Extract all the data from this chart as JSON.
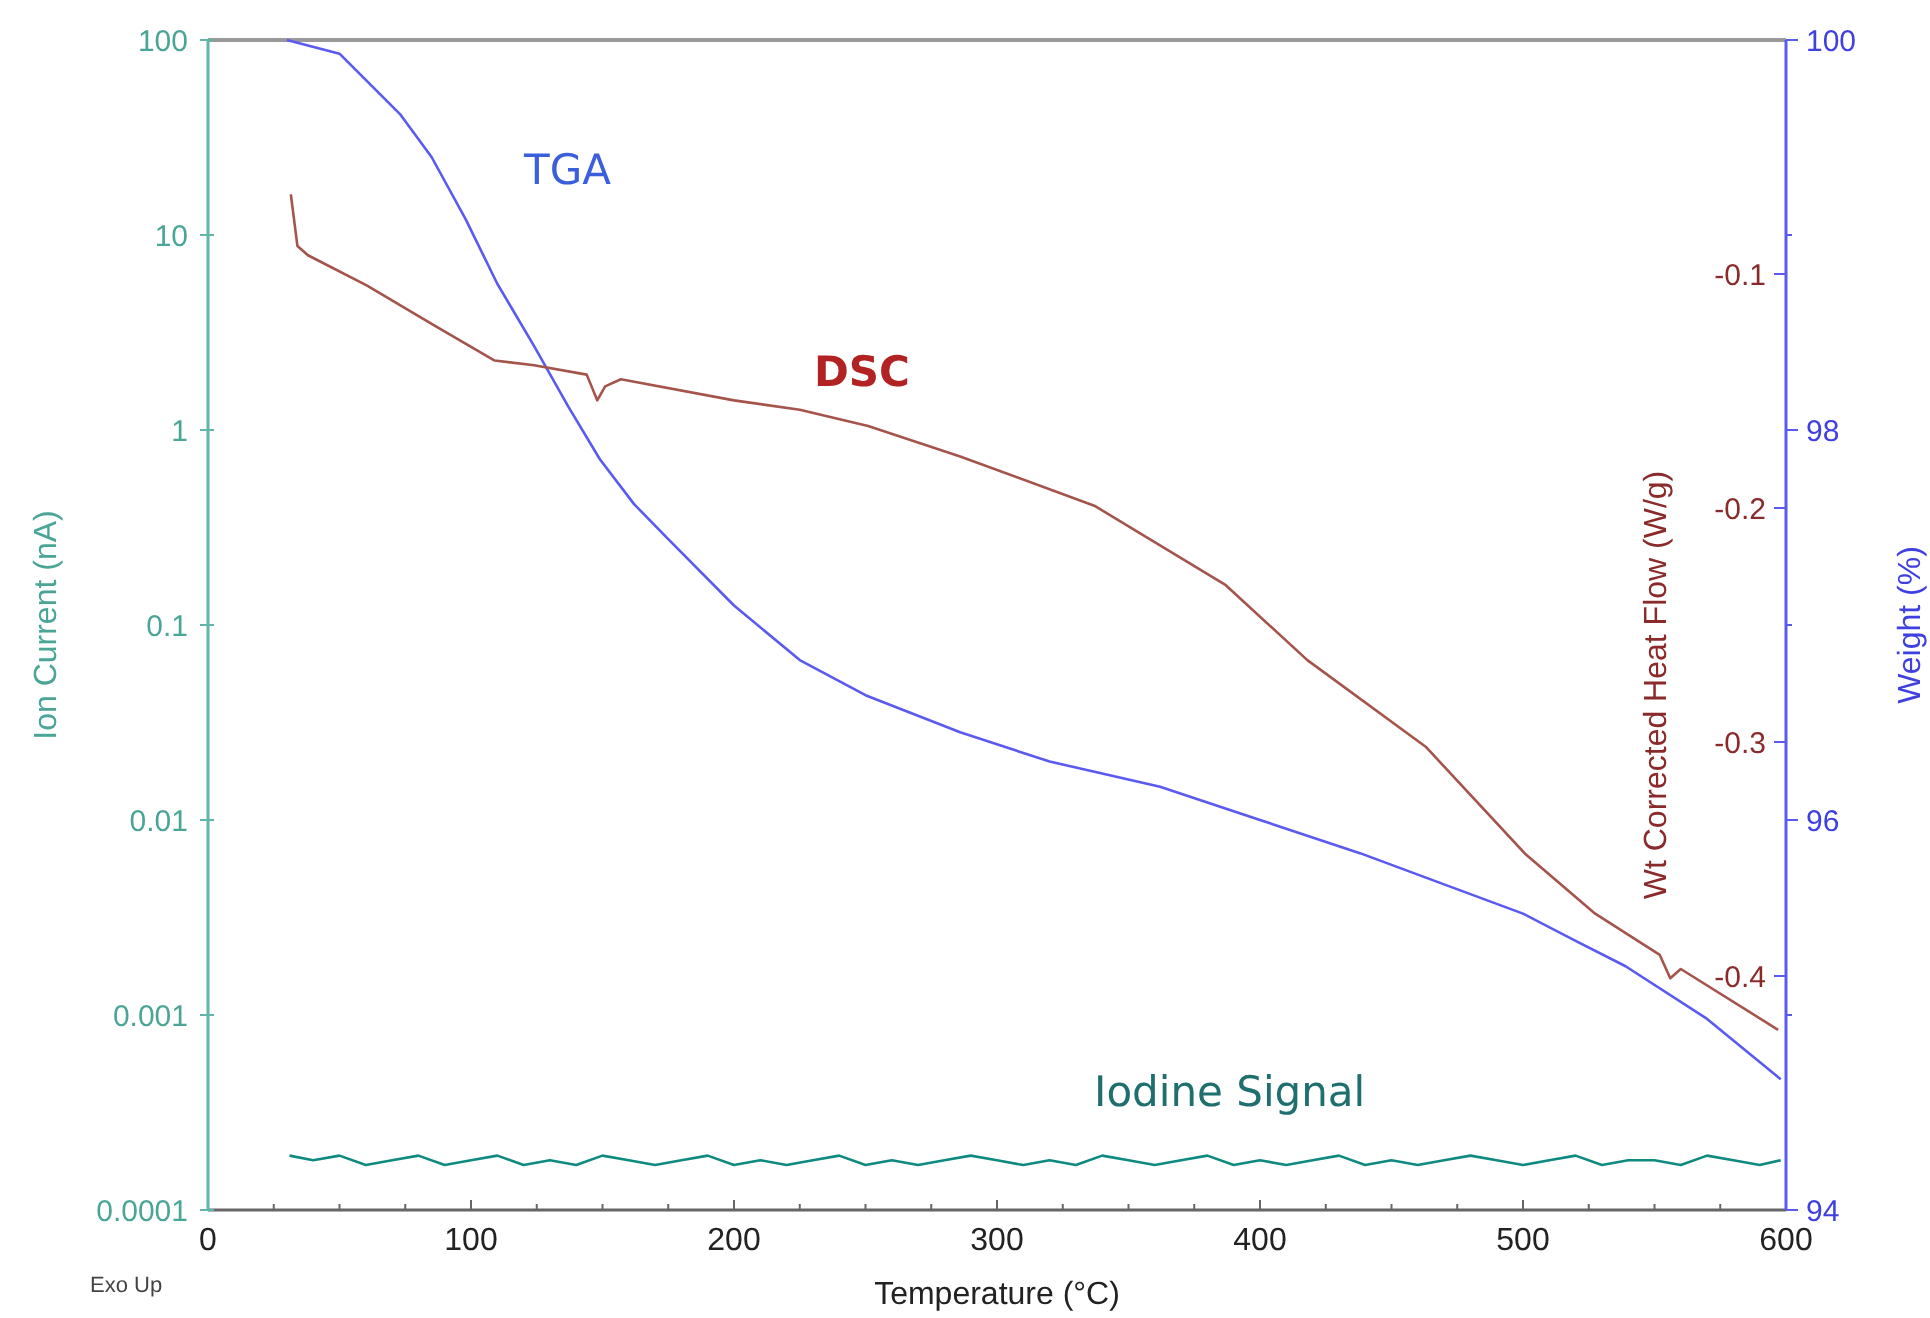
{
  "chart_data": {
    "type": "line",
    "xlabel": "Temperature (°C)",
    "ylabel": "Ion Current (nA)",
    "y2label": "Weight (%)",
    "y3label": "Wt Corrected Heat Flow (W/g)",
    "xlim": [
      0,
      600
    ],
    "xticks": [
      0,
      {
        "value": 25,
        "label": null
      },
      {
        "value": 50,
        "label": null
      },
      {
        "value": 75,
        "label": null
      },
      100,
      {
        "value": 125,
        "label": null
      },
      {
        "value": 150,
        "label": null
      },
      {
        "value": 175,
        "label": null
      },
      200,
      {
        "value": 225,
        "label": null
      },
      {
        "value": 250,
        "label": null
      },
      {
        "value": 275,
        "label": null
      },
      300,
      {
        "value": 325,
        "label": null
      },
      {
        "value": 350,
        "label": null
      },
      {
        "value": 375,
        "label": null
      },
      400,
      {
        "value": 425,
        "label": null
      },
      {
        "value": 450,
        "label": null
      },
      {
        "value": 475,
        "label": null
      },
      500,
      {
        "value": 525,
        "label": null
      },
      {
        "value": 550,
        "label": null
      },
      {
        "value": 575,
        "label": null
      },
      600
    ],
    "log": "y",
    "ylim": [
      0.0001,
      100
    ],
    "yticks": [
      0.0001,
      0.001,
      0.01,
      0.1,
      1,
      10,
      100
    ],
    "y2lim": [
      94,
      100
    ],
    "y2ticks": [
      94,
      {
        "value": 95,
        "label": null
      },
      96,
      {
        "value": 97,
        "label": null
      },
      98,
      {
        "value": 99,
        "label": null
      },
      100
    ],
    "y3lim": [
      -0.5,
      0
    ],
    "y3ticks": [
      -0.4,
      -0.3,
      -0.2,
      -0.1
    ],
    "grid": false,
    "legend": false,
    "marker": "none",
    "line_style": "solid",
    "annotations": [
      "Exo Up"
    ],
    "series": [
      {
        "name": "TGA",
        "color": "#5a5af0",
        "axis": "y2",
        "x": [
          30,
          50,
          73,
          85,
          98,
          110,
          124,
          137,
          149,
          162,
          175,
          200,
          225,
          250,
          286,
          320,
          362,
          400,
          438,
          470,
          500,
          520,
          539,
          570,
          598
        ],
        "values": [
          100,
          99.93,
          99.62,
          99.4,
          99.08,
          98.75,
          98.43,
          98.12,
          97.85,
          97.62,
          97.44,
          97.1,
          96.82,
          96.64,
          96.45,
          96.3,
          96.17,
          96.0,
          95.83,
          95.67,
          95.52,
          95.38,
          95.25,
          94.98,
          94.67
        ]
      },
      {
        "name": "DSC",
        "color": "#a5544c",
        "axis": "y3",
        "x": [
          31.5,
          34,
          38,
          60.5,
          86,
          109,
          124,
          144,
          148,
          151,
          157,
          200,
          225,
          251,
          286,
          337,
          387,
          418,
          463,
          501,
          527,
          552,
          556,
          560,
          597
        ],
        "values": [
          -0.066,
          -0.088,
          -0.092,
          -0.105,
          -0.122,
          -0.137,
          -0.139,
          -0.143,
          -0.154,
          -0.148,
          -0.145,
          -0.154,
          -0.158,
          -0.165,
          -0.178,
          -0.199,
          -0.233,
          -0.265,
          -0.302,
          -0.348,
          -0.373,
          -0.391,
          -0.401,
          -0.397,
          -0.423
        ]
      },
      {
        "name": "Iodine Signal",
        "color": "#0e8a80",
        "axis": "y",
        "x": [
          31,
          40,
          50,
          60,
          70,
          80,
          90,
          100,
          110,
          120,
          130,
          140,
          150,
          160,
          170,
          180,
          190,
          200,
          210,
          220,
          230,
          240,
          250,
          260,
          270,
          280,
          290,
          300,
          310,
          320,
          330,
          340,
          350,
          360,
          370,
          380,
          390,
          400,
          410,
          420,
          430,
          440,
          450,
          460,
          470,
          480,
          490,
          500,
          510,
          520,
          530,
          540,
          550,
          560,
          570,
          580,
          590,
          598
        ],
        "values": [
          0.00019,
          0.00018,
          0.00019,
          0.00017,
          0.00018,
          0.00019,
          0.00017,
          0.00018,
          0.00019,
          0.00017,
          0.00018,
          0.00017,
          0.00019,
          0.00018,
          0.00017,
          0.00018,
          0.00019,
          0.00017,
          0.00018,
          0.00017,
          0.00018,
          0.00019,
          0.00017,
          0.00018,
          0.00017,
          0.00018,
          0.00019,
          0.00018,
          0.00017,
          0.00018,
          0.00017,
          0.00019,
          0.00018,
          0.00017,
          0.00018,
          0.00019,
          0.00017,
          0.00018,
          0.00017,
          0.00018,
          0.00019,
          0.00017,
          0.00018,
          0.00017,
          0.00018,
          0.00019,
          0.00018,
          0.00017,
          0.00018,
          0.00019,
          0.00017,
          0.00018,
          0.00018,
          0.00017,
          0.00019,
          0.00018,
          0.00017,
          0.00018
        ]
      }
    ]
  }
}
